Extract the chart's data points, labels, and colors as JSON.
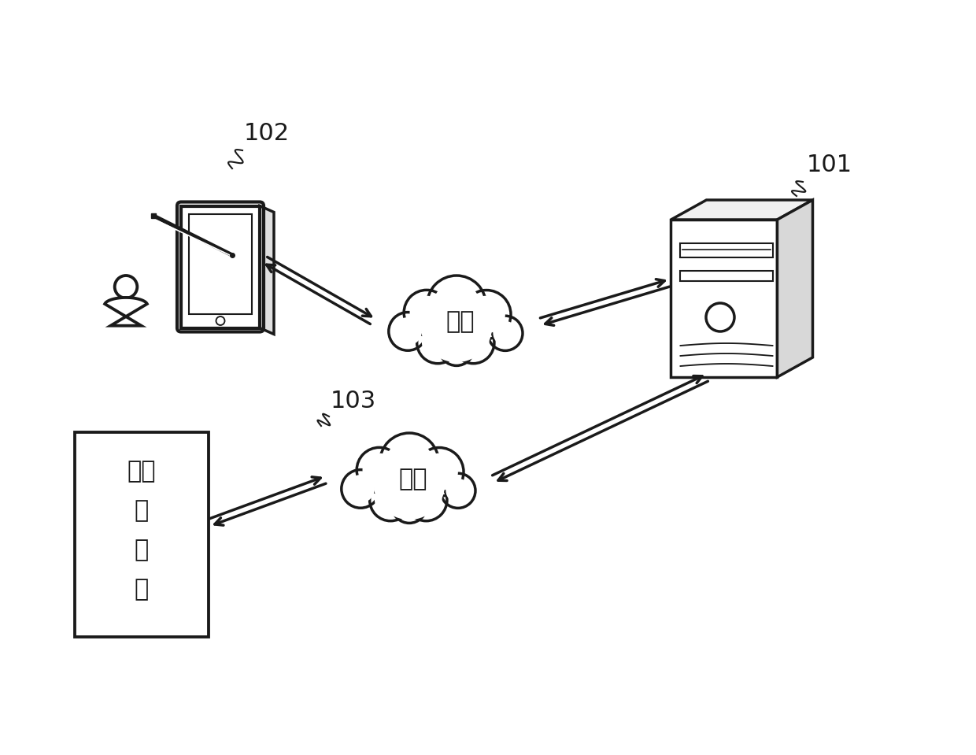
{
  "bg_color": "#ffffff",
  "lc": "#1a1a1a",
  "lw": 2.5,
  "lw_thin": 1.5,
  "label_101": "101",
  "label_102": "102",
  "label_103": "103",
  "network_text": "网络",
  "cab_text": "目标换电柜",
  "cab_lines": [
    "目标",
    "换电柜"
  ],
  "figsize": [
    12.4,
    9.59
  ],
  "dpi": 100,
  "xlim": [
    0,
    12.4
  ],
  "ylim": [
    0,
    9.59
  ]
}
